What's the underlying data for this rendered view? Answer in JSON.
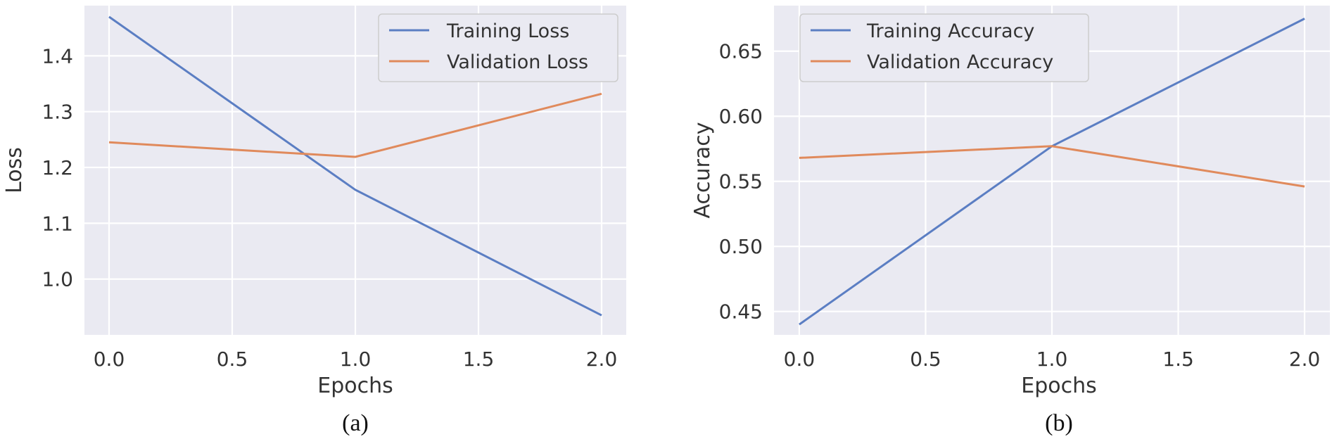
{
  "chart_data": [
    {
      "type": "line",
      "title": "",
      "caption": "(a)",
      "xlabel": "Epochs",
      "ylabel": "Loss",
      "x": [
        0,
        1,
        2
      ],
      "xlim": [
        -0.1,
        2.1
      ],
      "ylim": [
        0.9,
        1.49
      ],
      "xticks": [
        0.0,
        0.5,
        1.0,
        1.5,
        2.0
      ],
      "xtick_labels": [
        "0.0",
        "0.5",
        "1.0",
        "1.5",
        "2.0"
      ],
      "yticks": [
        1.0,
        1.1,
        1.2,
        1.3,
        1.4
      ],
      "ytick_labels": [
        "1.0",
        "1.1",
        "1.2",
        "1.3",
        "1.4"
      ],
      "grid": true,
      "legend_position": "top-right",
      "series": [
        {
          "name": "Training Loss",
          "values": [
            1.47,
            1.16,
            0.935
          ],
          "color": "#5b7ec3"
        },
        {
          "name": "Validation Loss",
          "values": [
            1.245,
            1.219,
            1.332
          ],
          "color": "#e08a5c"
        }
      ]
    },
    {
      "type": "line",
      "title": "",
      "caption": "(b)",
      "xlabel": "Epochs",
      "ylabel": "Accuracy",
      "x": [
        0,
        1,
        2
      ],
      "xlim": [
        -0.1,
        2.1
      ],
      "ylim": [
        0.432,
        0.685
      ],
      "xticks": [
        0.0,
        0.5,
        1.0,
        1.5,
        2.0
      ],
      "xtick_labels": [
        "0.0",
        "0.5",
        "1.0",
        "1.5",
        "2.0"
      ],
      "yticks": [
        0.45,
        0.5,
        0.55,
        0.6,
        0.65
      ],
      "ytick_labels": [
        "0.45",
        "0.50",
        "0.55",
        "0.60",
        "0.65"
      ],
      "grid": true,
      "legend_position": "top-left",
      "series": [
        {
          "name": "Training Accuracy",
          "values": [
            0.44,
            0.577,
            0.675
          ],
          "color": "#5b7ec3"
        },
        {
          "name": "Validation Accuracy",
          "values": [
            0.568,
            0.577,
            0.546
          ],
          "color": "#e08a5c"
        }
      ]
    }
  ]
}
